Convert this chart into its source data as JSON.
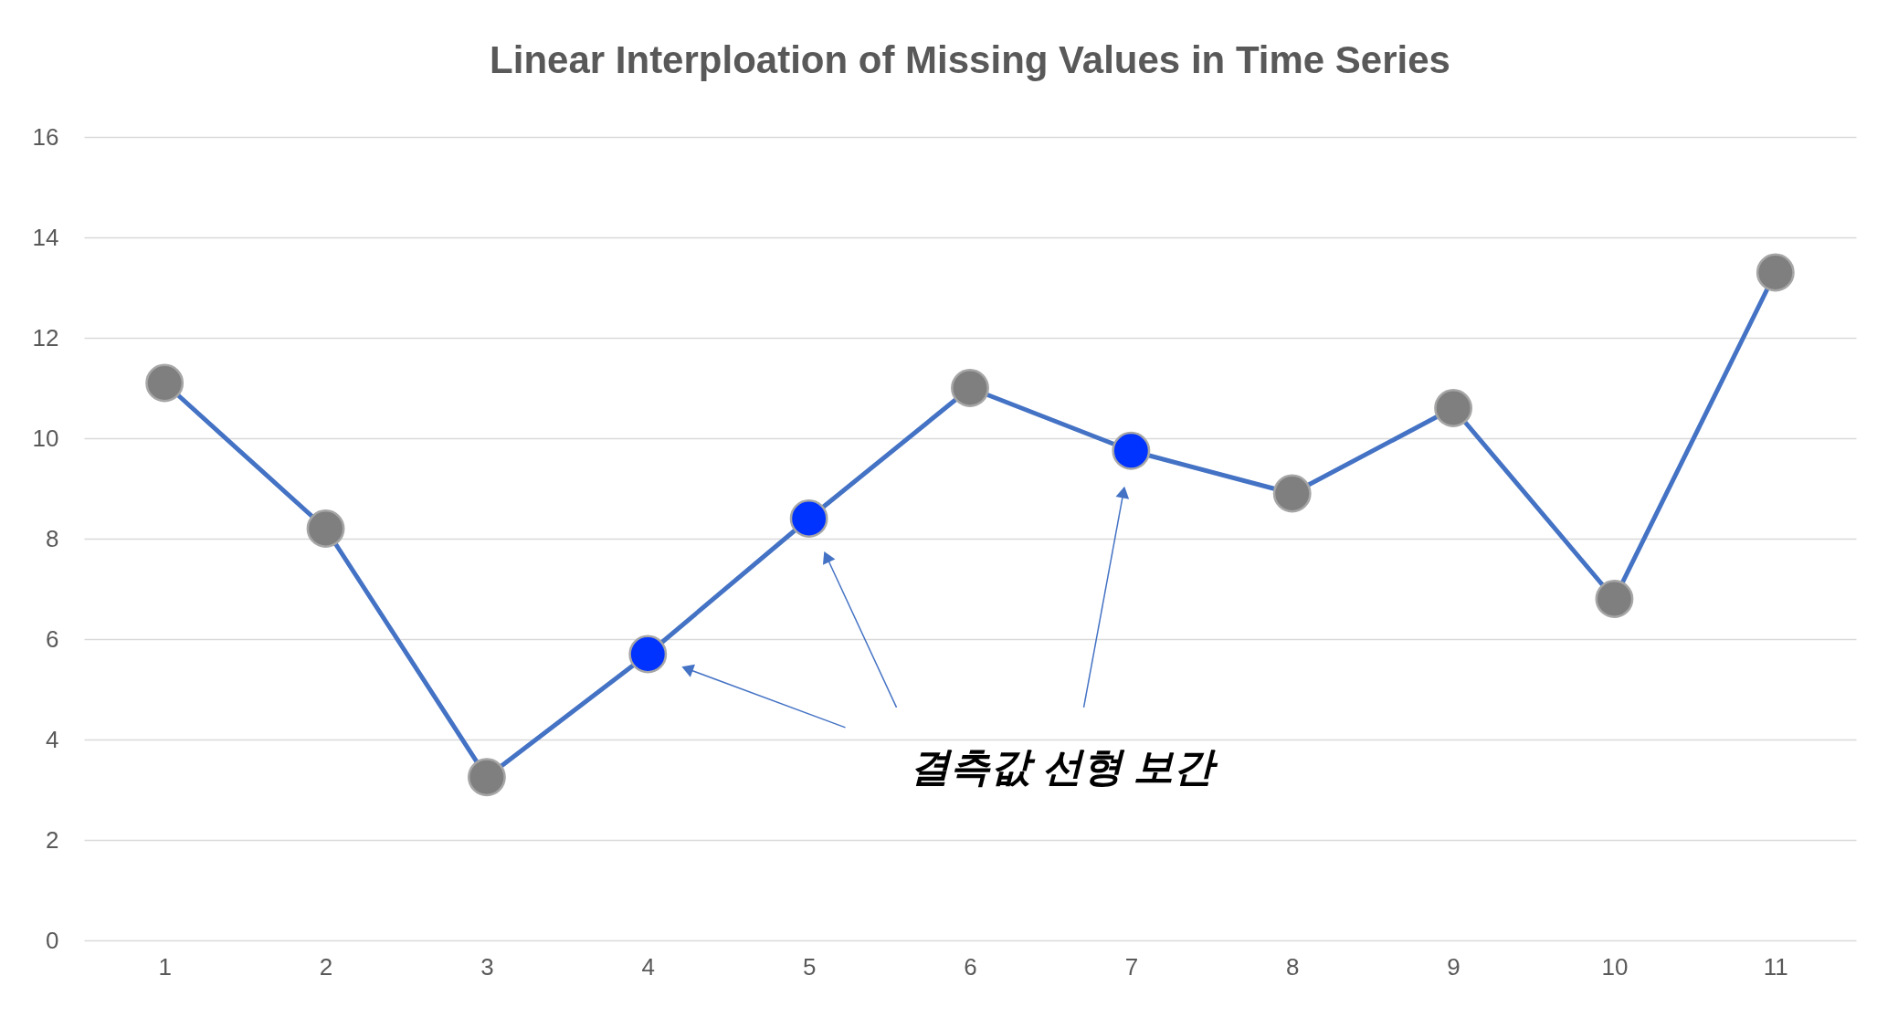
{
  "chart_data": {
    "type": "line",
    "title": "Linear Interploation of Missing Values in Time Series",
    "categories": [
      "1",
      "2",
      "3",
      "4",
      "5",
      "6",
      "7",
      "8",
      "9",
      "10",
      "11"
    ],
    "series": [
      {
        "color": "#4472c4",
        "values": [
          11.1,
          8.2,
          3.25,
          5.7,
          8.4,
          11.0,
          9.75,
          8.9,
          10.6,
          6.8,
          13.3
        ],
        "colors": [
          "#7f7f7f",
          "#7f7f7f",
          "#7f7f7f",
          "#0033ff",
          "#0033ff",
          "#7f7f7f",
          "#0033ff",
          "#7f7f7f",
          "#7f7f7f",
          "#7f7f7f",
          "#7f7f7f"
        ]
      }
    ],
    "ylim": [
      0,
      16
    ],
    "yticks": [
      0,
      2,
      4,
      6,
      8,
      10,
      12,
      14,
      16
    ],
    "grid": "y",
    "marker": "circle",
    "line_style": "solid",
    "annotations": [
      "결측값 선형 보간"
    ]
  }
}
